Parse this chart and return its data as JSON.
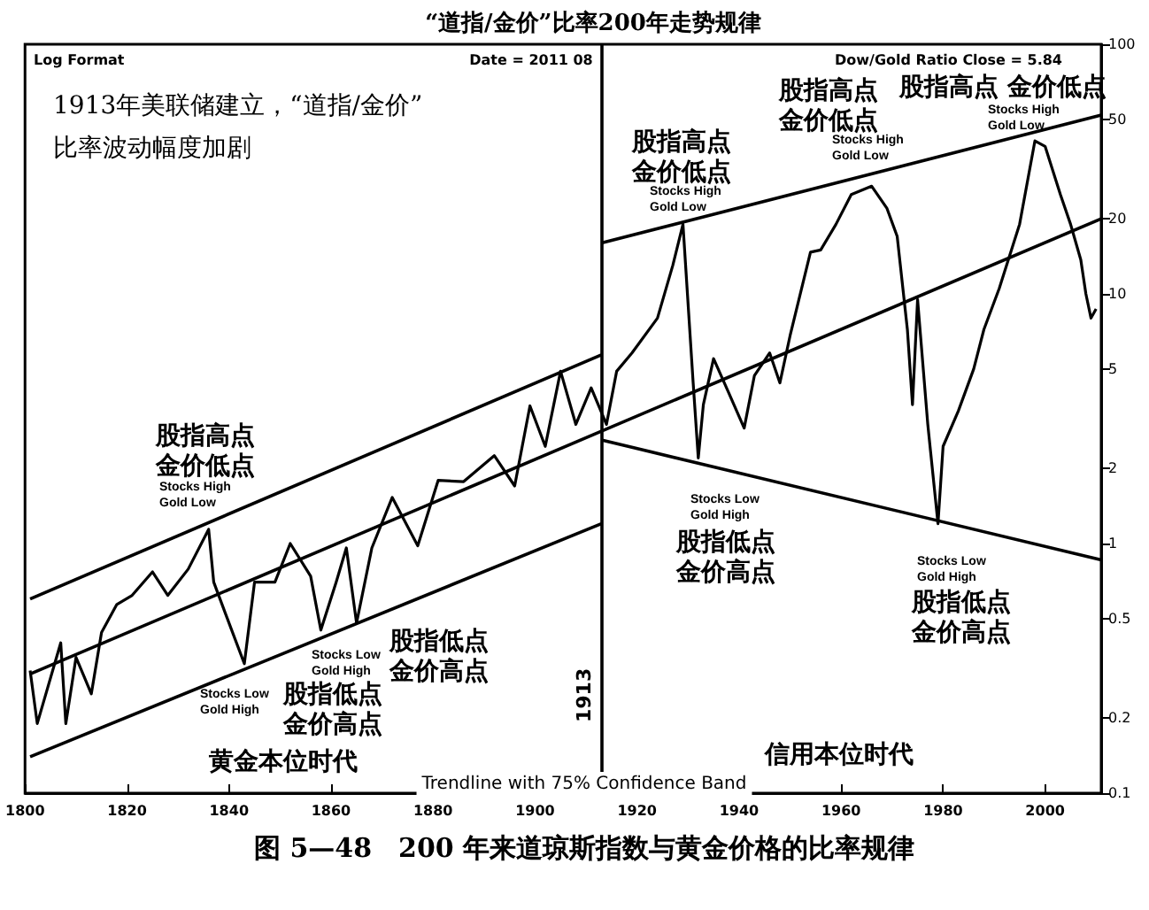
{
  "chart_data": {
    "type": "line",
    "title": "“道指/金价”比率200年走势规律",
    "log": "y",
    "xlim": [
      1800,
      2011
    ],
    "xticks": [
      1800,
      1820,
      1840,
      1860,
      1880,
      1900,
      1920,
      1940,
      1960,
      1980,
      2000
    ],
    "ylim": [
      0.1,
      100
    ],
    "yticks": [
      0.1,
      0.2,
      0.5,
      1,
      2,
      5,
      10,
      20,
      50,
      100
    ],
    "series": [
      {
        "color": "#000000",
        "x": [
          1801,
          1802.4,
          1807,
          1808,
          1810,
          1813,
          1815,
          1818,
          1821,
          1825,
          1828,
          1832,
          1836,
          1837,
          1840,
          1843,
          1845,
          1849,
          1852,
          1856,
          1858,
          1861,
          1863,
          1865,
          1868,
          1872,
          1877,
          1881,
          1886,
          1892,
          1896,
          1899,
          1902,
          1905,
          1908,
          1911,
          1914,
          1916,
          1919,
          1924,
          1927,
          1929,
          1931,
          1932,
          1933,
          1935,
          1938,
          1941,
          1943,
          1946,
          1948,
          1950,
          1954,
          1956,
          1959,
          1962,
          1966,
          1969,
          1971,
          1973,
          1974,
          1975,
          1977,
          1979,
          1980,
          1983,
          1986,
          1988,
          1991,
          1995,
          1998,
          2000,
          2003,
          2005,
          2007,
          2008,
          2009,
          2010
        ],
        "values": [
          0.31,
          0.19,
          0.4,
          0.19,
          0.35,
          0.25,
          0.44,
          0.57,
          0.62,
          0.77,
          0.62,
          0.79,
          1.14,
          0.7,
          0.48,
          0.33,
          0.7,
          0.7,
          1.0,
          0.74,
          0.45,
          0.7,
          0.96,
          0.48,
          0.96,
          1.53,
          0.98,
          1.79,
          1.77,
          2.25,
          1.7,
          3.56,
          2.45,
          4.9,
          3.0,
          4.2,
          3.0,
          4.9,
          5.8,
          8,
          13,
          19,
          4.4,
          2.2,
          3.6,
          5.5,
          4.0,
          2.9,
          4.7,
          5.8,
          4.4,
          6.8,
          14.7,
          15,
          19,
          25,
          27,
          22,
          17,
          7.2,
          3.6,
          9.5,
          3.0,
          1.2,
          2.45,
          3.4,
          5,
          7.2,
          10.5,
          19,
          41,
          39,
          25,
          19,
          13.7,
          10,
          8,
          8.7
        ]
      },
      {
        "color": "#000000",
        "x": [
          1801,
          2011
        ],
        "values": [
          0.3,
          20
        ]
      },
      {
        "color": "#000000",
        "x": [
          1801,
          1913
        ],
        "values": [
          0.6,
          5.7
        ]
      },
      {
        "color": "#000000",
        "x": [
          1801,
          1913
        ],
        "values": [
          0.14,
          1.2
        ]
      },
      {
        "color": "#000000",
        "x": [
          1913,
          2011
        ],
        "values": [
          16,
          52
        ]
      },
      {
        "color": "#000000",
        "x": [
          1913,
          2011
        ],
        "values": [
          2.6,
          0.86
        ]
      }
    ],
    "ref_lines": [
      {
        "axis": "x",
        "value": 1913,
        "label": "1913",
        "color": "#000000"
      }
    ],
    "annotations": [
      "Log Format",
      "Date = 2011 08",
      "Dow/Gold Ratio Close = 5.84",
      "1913年美联储建立，“道指/金价”\n比率波动幅度加剧",
      "Trendline with 75% Confidence Band",
      "图 5—48　200 年来道琼斯指数与黄金价格的比率规律",
      "股指高点金价低点",
      "Stocks High\nGold Low",
      "股指低点金价高点",
      "Stocks Low\nGold High",
      "股指低点金价高点",
      "Stocks Low\nGold High",
      "股指高点金价低点",
      "Stocks High\nGold Low",
      "股指高点金价低点",
      "Stocks High\nGold Low",
      "股指高点 金价低点",
      "Stocks High\nGold Low",
      "Stocks Low\nGold High",
      "股指低点金价高点",
      "Stocks Low\nGold High",
      "股指低点金价高点",
      "黄金本位时代",
      "信用本位时代"
    ]
  }
}
